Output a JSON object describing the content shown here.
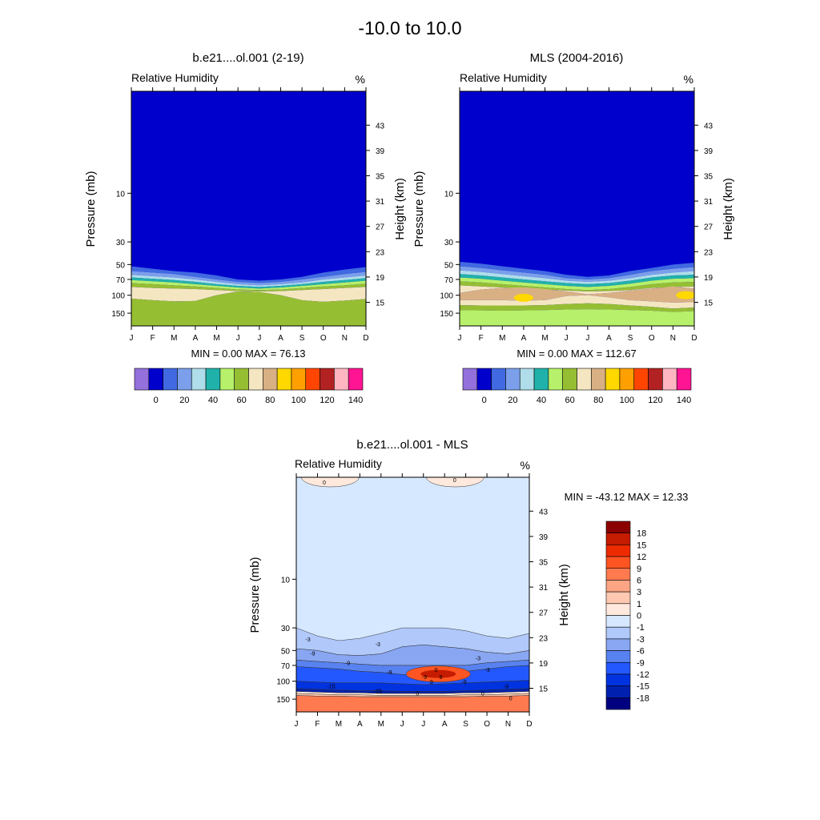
{
  "figure": {
    "title": "-10.0 to  10.0"
  },
  "colors": {
    "rh_palette": [
      "#9370DB",
      "#0000CD",
      "#4169E1",
      "#7B9FEA",
      "#AFDDE9",
      "#20B2AA",
      "#B7F06A",
      "#96BE33",
      "#F5E6C2",
      "#D8B084",
      "#FFD800",
      "#FFA000",
      "#FF4500",
      "#B22222",
      "#FFB6C1",
      "#FF1493"
    ],
    "diff_palette": [
      "#000080",
      "#0020B0",
      "#0033E0",
      "#2458FF",
      "#5882F0",
      "#88A6F2",
      "#B0C8FA",
      "#D6E8FF",
      "#FFE8DC",
      "#FFC8B0",
      "#FCA585",
      "#FF7A4F",
      "#FF5522",
      "#EE2A00",
      "#C51B00",
      "#8B0000"
    ]
  },
  "chart_data": [
    {
      "type": "heatmap",
      "variable": "Relative Humidity",
      "title": "b.e21....ol.001 (2-19)",
      "xlabel": "",
      "ylabel": "Pressure (mb)",
      "ylabel_right": "Height (km)",
      "units": "%",
      "x_ticks": [
        "J",
        "F",
        "M",
        "A",
        "M",
        "J",
        "J",
        "A",
        "S",
        "O",
        "N",
        "D"
      ],
      "y_ticks_pressure": [
        "10",
        "30",
        "50",
        "70",
        "100",
        "150"
      ],
      "y_ticks_height": [
        "43",
        "39",
        "35",
        "31",
        "27",
        "23",
        "19",
        "15"
      ],
      "min_label": "MIN =   0.00  MAX =  76.13",
      "colorbar_labels": [
        "0",
        "20",
        "40",
        "60",
        "80",
        "100",
        "120",
        "140"
      ],
      "bands_top_to_bottom": [
        {
          "level_range": "0-10",
          "pressure_bottom_mb": [
            52,
            55,
            58,
            60,
            64,
            70,
            72,
            70,
            66,
            60,
            56,
            53
          ]
        },
        {
          "level_range": "10-20",
          "pressure_bottom_mb": [
            58,
            60,
            62,
            66,
            70,
            74,
            76,
            74,
            70,
            66,
            62,
            59
          ]
        },
        {
          "level_range": "20-30",
          "pressure_bottom_mb": [
            63,
            65,
            67,
            70,
            74,
            78,
            80,
            78,
            75,
            70,
            67,
            64
          ]
        },
        {
          "level_range": "30-40",
          "pressure_bottom_mb": [
            67,
            69,
            71,
            74,
            78,
            81,
            83,
            81,
            78,
            74,
            71,
            68
          ]
        },
        {
          "level_range": "40-50",
          "pressure_bottom_mb": [
            71,
            73,
            75,
            78,
            81,
            84,
            86,
            84,
            81,
            78,
            75,
            72
          ]
        },
        {
          "level_range": "50-60",
          "pressure_bottom_mb": [
            76,
            78,
            80,
            82,
            85,
            88,
            89,
            88,
            85,
            82,
            80,
            77
          ]
        },
        {
          "level_range": "60-70",
          "pressure_bottom_mb": [
            83,
            85,
            86,
            87,
            89,
            91,
            92,
            91,
            89,
            87,
            85,
            83
          ]
        },
        {
          "level_range": "70-80",
          "pressure_bottom_mb": [
            108,
            112,
            115,
            114,
            100,
            92,
            93,
            100,
            112,
            116,
            113,
            109
          ]
        },
        {
          "level_range": "60-70",
          "pressure_bottom_mb": [
            200,
            200,
            200,
            200,
            200,
            200,
            200,
            200,
            200,
            200,
            200,
            200
          ]
        }
      ]
    },
    {
      "type": "heatmap",
      "variable": "Relative Humidity",
      "title": "MLS (2004-2016)",
      "xlabel": "",
      "ylabel": "Pressure (mb)",
      "ylabel_right": "Height (km)",
      "units": "%",
      "x_ticks": [
        "J",
        "F",
        "M",
        "A",
        "M",
        "J",
        "J",
        "A",
        "S",
        "O",
        "N",
        "D"
      ],
      "y_ticks_pressure": [
        "10",
        "30",
        "50",
        "70",
        "100",
        "150"
      ],
      "y_ticks_height": [
        "43",
        "39",
        "35",
        "31",
        "27",
        "23",
        "19",
        "15"
      ],
      "min_label": "MIN =   0.00  MAX = 112.67",
      "colorbar_labels": [
        "0",
        "20",
        "40",
        "60",
        "80",
        "100",
        "120",
        "140"
      ],
      "bands_top_to_bottom": [
        {
          "level_range": "0-10",
          "pressure_bottom_mb": [
            47,
            49,
            52,
            55,
            58,
            63,
            66,
            64,
            58,
            54,
            50,
            48
          ]
        },
        {
          "level_range": "10-20",
          "pressure_bottom_mb": [
            52,
            54,
            57,
            60,
            63,
            68,
            70,
            68,
            63,
            58,
            55,
            53
          ]
        },
        {
          "level_range": "20-30",
          "pressure_bottom_mb": [
            57,
            59,
            62,
            65,
            68,
            72,
            74,
            72,
            68,
            63,
            60,
            58
          ]
        },
        {
          "level_range": "30-40",
          "pressure_bottom_mb": [
            62,
            64,
            67,
            70,
            73,
            76,
            78,
            76,
            72,
            67,
            64,
            63
          ]
        },
        {
          "level_range": "40-50",
          "pressure_bottom_mb": [
            67,
            69,
            72,
            75,
            78,
            81,
            83,
            81,
            77,
            72,
            69,
            68
          ]
        },
        {
          "level_range": "50-60",
          "pressure_bottom_mb": [
            73,
            75,
            78,
            81,
            84,
            87,
            89,
            87,
            83,
            78,
            75,
            74
          ]
        },
        {
          "level_range": "60-70",
          "pressure_bottom_mb": [
            80,
            82,
            84,
            86,
            88,
            90,
            92,
            91,
            89,
            85,
            83,
            82
          ]
        },
        {
          "level_range": "70-80",
          "pressure_bottom_mb": [
            95,
            88,
            85,
            84,
            87,
            92,
            98,
            95,
            90,
            86,
            82,
            86
          ]
        },
        {
          "level_range": "80-90",
          "pressure_bottom_mb": [
            112,
            112,
            112,
            113,
            112,
            102,
            100,
            105,
            112,
            115,
            118,
            117
          ]
        },
        {
          "level_range": "70-80",
          "pressure_bottom_mb": [
            125,
            126,
            126,
            126,
            125,
            122,
            120,
            122,
            126,
            130,
            135,
            132
          ]
        },
        {
          "level_range": "60-70",
          "pressure_bottom_mb": [
            140,
            141,
            142,
            141,
            140,
            138,
            137,
            138,
            140,
            142,
            146,
            143
          ]
        },
        {
          "level_range": "50-60",
          "pressure_bottom_mb": [
            200,
            200,
            200,
            200,
            200,
            200,
            200,
            200,
            200,
            200,
            200,
            200
          ]
        }
      ],
      "maxima": [
        {
          "label": "100-110",
          "month_index": 3.0,
          "pressure_mb": 106
        },
        {
          "label": "100-110",
          "month_index": 10.6,
          "pressure_mb": 100
        }
      ]
    },
    {
      "type": "heatmap",
      "variable": "Relative Humidity",
      "title": "b.e21....ol.001 - MLS",
      "xlabel": "",
      "ylabel": "Pressure (mb)",
      "ylabel_right": "Height (km)",
      "units": "%",
      "x_ticks": [
        "J",
        "F",
        "M",
        "A",
        "M",
        "J",
        "J",
        "A",
        "S",
        "O",
        "N",
        "D"
      ],
      "y_ticks_pressure": [
        "10",
        "30",
        "50",
        "70",
        "100",
        "150"
      ],
      "y_ticks_height": [
        "43",
        "39",
        "35",
        "31",
        "27",
        "23",
        "19",
        "15"
      ],
      "min_label": "MIN = -43.12  MAX =  12.33",
      "colorbar_labels": [
        "18",
        "15",
        "12",
        "9",
        "6",
        "3",
        "1",
        "0",
        "-1",
        "-3",
        "-6",
        "-9",
        "-12",
        "-15",
        "-18"
      ],
      "contour_labels": [
        "0",
        "0",
        "-3",
        "-3",
        "-9",
        "-9",
        "-9",
        "-9",
        "-9",
        "-9",
        "-15",
        "-15",
        "0",
        "9",
        "0",
        "0",
        "0",
        "-3",
        "-3",
        "9"
      ],
      "bands_top_to_bottom": [
        {
          "level_range": "-1-0",
          "pressure_bottom_mb": [
            30,
            36,
            40,
            38,
            34,
            30,
            30,
            30,
            32,
            36,
            38,
            34
          ]
        },
        {
          "level_range": "-3--1",
          "pressure_bottom_mb": [
            48,
            50,
            55,
            56,
            54,
            46,
            44,
            46,
            48,
            52,
            54,
            50
          ]
        },
        {
          "level_range": "-6--3",
          "pressure_bottom_mb": [
            62,
            64,
            66,
            68,
            70,
            70,
            70,
            70,
            70,
            66,
            64,
            62
          ]
        },
        {
          "level_range": "-9--6",
          "pressure_bottom_mb": [
            72,
            74,
            76,
            80,
            82,
            86,
            88,
            86,
            80,
            76,
            72,
            70
          ]
        },
        {
          "level_range": "-12--9",
          "pressure_bottom_mb": [
            100,
            102,
            104,
            104,
            104,
            106,
            108,
            106,
            104,
            102,
            100,
            98
          ]
        },
        {
          "level_range": "-15--12",
          "pressure_bottom_mb": [
            118,
            120,
            122,
            124,
            124,
            126,
            126,
            126,
            124,
            122,
            120,
            118
          ]
        },
        {
          "level_range": "-18--15",
          "pressure_bottom_mb": [
            126,
            128,
            130,
            130,
            132,
            132,
            132,
            132,
            130,
            130,
            128,
            126
          ]
        },
        {
          "level_range": "0-1",
          "pressure_bottom_mb": [
            132,
            134,
            136,
            136,
            138,
            138,
            138,
            138,
            136,
            136,
            134,
            132
          ]
        },
        {
          "level_range": "1-3",
          "pressure_bottom_mb": [
            138,
            140,
            140,
            142,
            142,
            142,
            142,
            142,
            142,
            140,
            140,
            138
          ]
        },
        {
          "level_range": "6-9",
          "pressure_bottom_mb": [
            200,
            200,
            200,
            200,
            200,
            200,
            200,
            200,
            200,
            200,
            200,
            200
          ]
        }
      ],
      "features": [
        {
          "label": "near-tropopause maximum",
          "center_month_index": 6.7,
          "center_pressure_mb": 85,
          "value": 12.33
        },
        {
          "label": "top-level positive lobe",
          "center_month_index": 1.6,
          "value": 0.5
        },
        {
          "label": "top-level positive lobe",
          "center_month_index": 7.5,
          "value": 0.5
        }
      ]
    }
  ]
}
